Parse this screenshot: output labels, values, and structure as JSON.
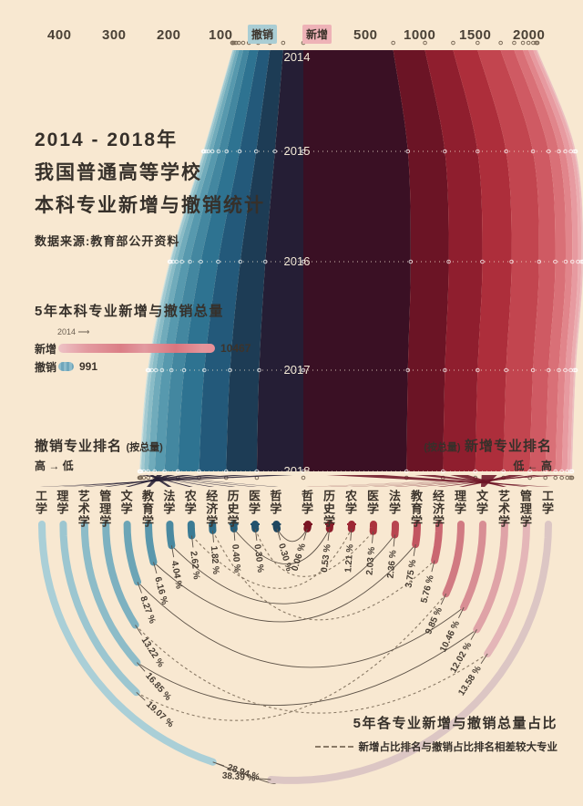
{
  "top_axis": {
    "removed_ticks": [
      "400",
      "300",
      "200",
      "100"
    ],
    "removed_chip": "撤销",
    "added_chip": "新增",
    "added_ticks": [
      "500",
      "1000",
      "1500",
      "2000"
    ]
  },
  "title": {
    "line1": "2014 - 2018年",
    "line2": "我国普通高等学校",
    "line3": "本科专业新增与撤销统计",
    "source": "数据来源:教育部公开资料"
  },
  "totals_legend": {
    "heading": "5年本科专业新增与撤销总量",
    "year_note": "2014 ⟶",
    "added_label": "新增",
    "added_value": "10467",
    "removed_label": "撤销",
    "removed_value": "991"
  },
  "rank_headers": {
    "removed_title": "撤销专业排名",
    "removed_note": "(按总量)",
    "removed_order": "高 → 低",
    "added_note": "(按总量)",
    "added_title": "新增专业排名",
    "added_order": "低 ← 高"
  },
  "footer": {
    "title": "5年各专业新增与撤销总量占比",
    "dashed_note": "新增占比排名与撤销占比排名相差较大专业"
  },
  "chart_data": [
    {
      "type": "area",
      "variant": "vertical-streamgraph",
      "title": "2014-2018 本科专业新增与撤销统计流图",
      "years": [
        "2014",
        "2015",
        "2016",
        "2017",
        "2018"
      ],
      "removed_axis_ticks": [
        400,
        300,
        200,
        100
      ],
      "added_axis_ticks": [
        500,
        1000,
        1500,
        2000
      ],
      "total_added": 10467,
      "total_removed": 991,
      "removed_band_colors": [
        "#251e35",
        "#1d3c55",
        "#23597a",
        "#2e7391",
        "#4387a0",
        "#5799ae",
        "#70abbb",
        "#8abcc7",
        "#a2cad2",
        "#b5d6da",
        "#c4dedf",
        "#d1e3e2"
      ],
      "added_band_colors": [
        "#3a1024",
        "#6b1425",
        "#8f1e2e",
        "#ad2e3b",
        "#c2454f",
        "#cf5a63",
        "#d97077",
        "#e1858b",
        "#e79aa0",
        "#ebadb1",
        "#ecbfc1",
        "#e9cdcc"
      ]
    },
    {
      "type": "bar",
      "variant": "radial-arc-bars",
      "title": "5年各专业新增与撤销总量占比",
      "removed_pct": [
        {
          "name": "工学",
          "pct": "28.94"
        },
        {
          "name": "理学",
          "pct": "19.07"
        },
        {
          "name": "艺术学",
          "pct": "16.85"
        },
        {
          "name": "管理学",
          "pct": "13.22"
        },
        {
          "name": "文学",
          "pct": "8.27"
        },
        {
          "name": "教育学",
          "pct": "6.16"
        },
        {
          "name": "法学",
          "pct": "4.04"
        },
        {
          "name": "农学",
          "pct": "2.62"
        },
        {
          "name": "经济学",
          "pct": "1.82"
        },
        {
          "name": "历史学",
          "pct": "0.40"
        },
        {
          "name": "医学",
          "pct": "0.30"
        },
        {
          "name": "哲学",
          "pct": "0.30"
        }
      ],
      "added_pct": [
        {
          "name": "哲学",
          "pct": "0.06"
        },
        {
          "name": "历史学",
          "pct": "0.53"
        },
        {
          "name": "农学",
          "pct": "1.21"
        },
        {
          "name": "医学",
          "pct": "2.03"
        },
        {
          "name": "法学",
          "pct": "2.36"
        },
        {
          "name": "教育学",
          "pct": "3.75"
        },
        {
          "name": "经济学",
          "pct": "5.76"
        },
        {
          "name": "理学",
          "pct": "9.85"
        },
        {
          "name": "文学",
          "pct": "10.46"
        },
        {
          "name": "艺术学",
          "pct": "12.02"
        },
        {
          "name": "管理学",
          "pct": "13.58"
        },
        {
          "name": "工学",
          "pct": "38.39"
        }
      ],
      "dashed_connector_categories": [
        "理学",
        "经济学",
        "医学",
        "农学",
        "管理学"
      ],
      "removed_bar_colors": [
        "#aacfd7",
        "#9cc6d0",
        "#8dbcc8",
        "#7db1c0",
        "#6ca5b6",
        "#5a97ac",
        "#4a89a0",
        "#3b7b94",
        "#2f6d88",
        "#28607b",
        "#23536d",
        "#1f4760"
      ],
      "added_bar_colors": [
        "#7a1422",
        "#8c1d2b",
        "#9d2734",
        "#ab333e",
        "#b84450",
        "#c25560",
        "#ca6670",
        "#d17a82",
        "#d88e94",
        "#dfa3a7",
        "#e4b6b8",
        "#dcc6c4"
      ]
    }
  ]
}
